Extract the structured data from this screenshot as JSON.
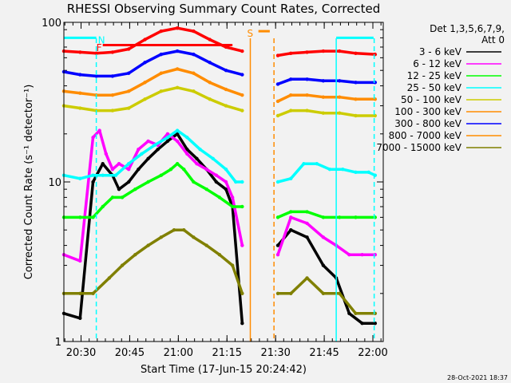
{
  "chart_data": {
    "type": "line",
    "title": "RHESSI Observing Summary Count Rates, Corrected",
    "xlabel": "Start Time (17-Jun-15 20:24:42)",
    "ylabel": "Corrected Count Rate (s⁻¹ detector⁻¹)",
    "y_scale": "log",
    "ylim": [
      1,
      100
    ],
    "xlim_minutes": [
      0,
      98.5
    ],
    "x_ticks": [
      {
        "label": "20:30",
        "m": 5.3
      },
      {
        "label": "20:45",
        "m": 20.3
      },
      {
        "label": "21:00",
        "m": 35.3
      },
      {
        "label": "21:15",
        "m": 50.3
      },
      {
        "label": "21:30",
        "m": 65.3
      },
      {
        "label": "21:45",
        "m": 80.3
      },
      {
        "label": "22:00",
        "m": 95.3
      }
    ],
    "y_ticks": [
      {
        "label": "1",
        "v": 1
      },
      {
        "label": "10",
        "v": 10
      },
      {
        "label": "100",
        "v": 100
      }
    ],
    "legend_header": [
      "Det 1,3,5,6,7,9,",
      "Att 0"
    ],
    "legend_position": "right",
    "grid": false,
    "data_gap_minutes": [
      57.5,
      64.8
    ],
    "series": [
      {
        "name": "3 - 6 keV",
        "color": "#000000",
        "x": [
          0,
          5,
          9,
          12,
          15,
          17,
          20,
          23,
          26,
          29,
          32,
          35,
          38,
          41,
          44,
          47,
          50,
          52,
          55,
          66,
          70,
          75,
          80,
          84,
          88,
          92,
          96
        ],
        "y": [
          1.5,
          1.4,
          10,
          13,
          11,
          9,
          10,
          12,
          14,
          16,
          18,
          20,
          16,
          14,
          12,
          10,
          9,
          7,
          1.3,
          4,
          5,
          4.5,
          3,
          2.5,
          1.5,
          1.3,
          1.3
        ]
      },
      {
        "name": "6 - 12 keV",
        "color": "#ff00ff",
        "x": [
          0,
          5,
          9,
          11,
          13,
          15,
          17,
          20,
          23,
          26,
          29,
          32,
          35,
          38,
          41,
          44,
          47,
          50,
          52,
          55,
          66,
          70,
          75,
          80,
          84,
          88,
          92,
          96
        ],
        "y": [
          3.5,
          3.2,
          19,
          21,
          15,
          12,
          13,
          12,
          16,
          18,
          17,
          20,
          18,
          15,
          13,
          12,
          11,
          10,
          8,
          4,
          3.5,
          6,
          5.5,
          4.5,
          4,
          3.5,
          3.5,
          3.5
        ]
      },
      {
        "name": "12 - 25 keV",
        "color": "#00ff00",
        "x": [
          0,
          5,
          9,
          12,
          15,
          18,
          22,
          26,
          30,
          33,
          35,
          37,
          40,
          44,
          48,
          52,
          55,
          66,
          70,
          75,
          80,
          85,
          90,
          96
        ],
        "y": [
          6,
          6,
          6,
          7,
          8,
          8,
          9,
          10,
          11,
          12,
          13,
          12,
          10,
          9,
          8,
          7,
          7,
          6,
          6.5,
          6.5,
          6,
          6,
          6,
          6
        ]
      },
      {
        "name": "25 - 50 keV",
        "color": "#00ffff",
        "x": [
          0,
          5,
          9,
          12,
          16,
          20,
          24,
          28,
          32,
          35,
          38,
          42,
          46,
          50,
          53,
          55,
          66,
          70,
          74,
          78,
          82,
          86,
          90,
          94,
          96
        ],
        "y": [
          11,
          10.5,
          11,
          11,
          11,
          13,
          15,
          17,
          19,
          21,
          19,
          16,
          14,
          12,
          10,
          10,
          10,
          10.5,
          13,
          13,
          12,
          12,
          11.5,
          11.5,
          11
        ]
      },
      {
        "name": "50 - 100 keV",
        "color": "#cccc00",
        "x": [
          0,
          5,
          10,
          15,
          20,
          25,
          30,
          35,
          40,
          45,
          50,
          55,
          66,
          70,
          75,
          80,
          85,
          90,
          96
        ],
        "y": [
          30,
          29,
          28,
          28,
          29,
          33,
          37,
          39,
          37,
          33,
          30,
          28,
          26,
          28,
          28,
          27,
          27,
          26,
          26
        ]
      },
      {
        "name": "100 - 300 keV",
        "color": "#ff8c00",
        "x": [
          0,
          5,
          10,
          15,
          20,
          25,
          30,
          35,
          40,
          45,
          50,
          55,
          66,
          70,
          75,
          80,
          85,
          90,
          96
        ],
        "y": [
          37,
          36,
          35,
          35,
          37,
          42,
          48,
          51,
          48,
          42,
          38,
          35,
          32,
          35,
          35,
          34,
          34,
          33,
          33
        ]
      },
      {
        "name": "300 - 800 keV",
        "color": "#0000ff",
        "x": [
          0,
          5,
          10,
          15,
          20,
          25,
          30,
          35,
          40,
          45,
          50,
          55,
          66,
          70,
          75,
          80,
          85,
          90,
          96
        ],
        "y": [
          49,
          47,
          46,
          46,
          48,
          56,
          63,
          66,
          63,
          56,
          50,
          47,
          41,
          44,
          44,
          43,
          43,
          42,
          42
        ]
      },
      {
        "name": "800 - 7000 keV",
        "color": "#ff8c00",
        "x": [],
        "y": []
      },
      {
        "name": "7000 - 15000 keV",
        "color": "#808000",
        "x": [
          0,
          5,
          9,
          14,
          18,
          22,
          26,
          30,
          34,
          37,
          40,
          44,
          48,
          52,
          55,
          66,
          70,
          75,
          80,
          85,
          90,
          96
        ],
        "y": [
          2,
          2,
          2,
          2.5,
          3,
          3.5,
          4,
          4.5,
          5,
          5,
          4.5,
          4,
          3.5,
          3,
          2,
          2,
          2,
          2.5,
          2,
          2,
          1.5,
          1.5
        ]
      }
    ],
    "top_series": {
      "color": "#ff0000",
      "x": [
        0,
        5,
        10,
        15,
        20,
        25,
        30,
        35,
        40,
        45,
        50,
        55,
        66,
        70,
        75,
        80,
        85,
        90,
        96
      ],
      "y": [
        66,
        65,
        64,
        65,
        68,
        78,
        88,
        92,
        88,
        78,
        70,
        66,
        62,
        64,
        65,
        66,
        66,
        64,
        63
      ]
    },
    "annotations": [
      {
        "label": "N",
        "color": "#00ffff"
      },
      {
        "label": "F",
        "color": "#ff0000"
      },
      {
        "label": "S",
        "color": "#ff8c00"
      }
    ],
    "vertical_markers": [
      {
        "m": 10.0,
        "color": "#00ffff",
        "style": "dashed"
      },
      {
        "m": 57.5,
        "color": "#ff8c00",
        "style": "solid"
      },
      {
        "m": 64.8,
        "color": "#ff8c00",
        "style": "dashed"
      },
      {
        "m": 84.0,
        "color": "#00ffff",
        "style": "solid"
      },
      {
        "m": 95.7,
        "color": "#00ffff",
        "style": "dashed"
      }
    ],
    "flag_bars": [
      {
        "label": "N",
        "color": "#00ffff",
        "from": 0.0,
        "to": 10.0,
        "v": 80
      },
      {
        "label": "N",
        "color": "#00ffff",
        "from": 84.0,
        "to": 95.5,
        "v": 80
      },
      {
        "label": "F",
        "color": "#ff0000",
        "from": 12.0,
        "to": 52.0,
        "v": 72
      },
      {
        "label": "S",
        "color": "#ff8c00",
        "from": 60.0,
        "to": 63.5,
        "v": 88
      }
    ]
  },
  "footer": {
    "date": "28-Oct-2021 18:37"
  }
}
